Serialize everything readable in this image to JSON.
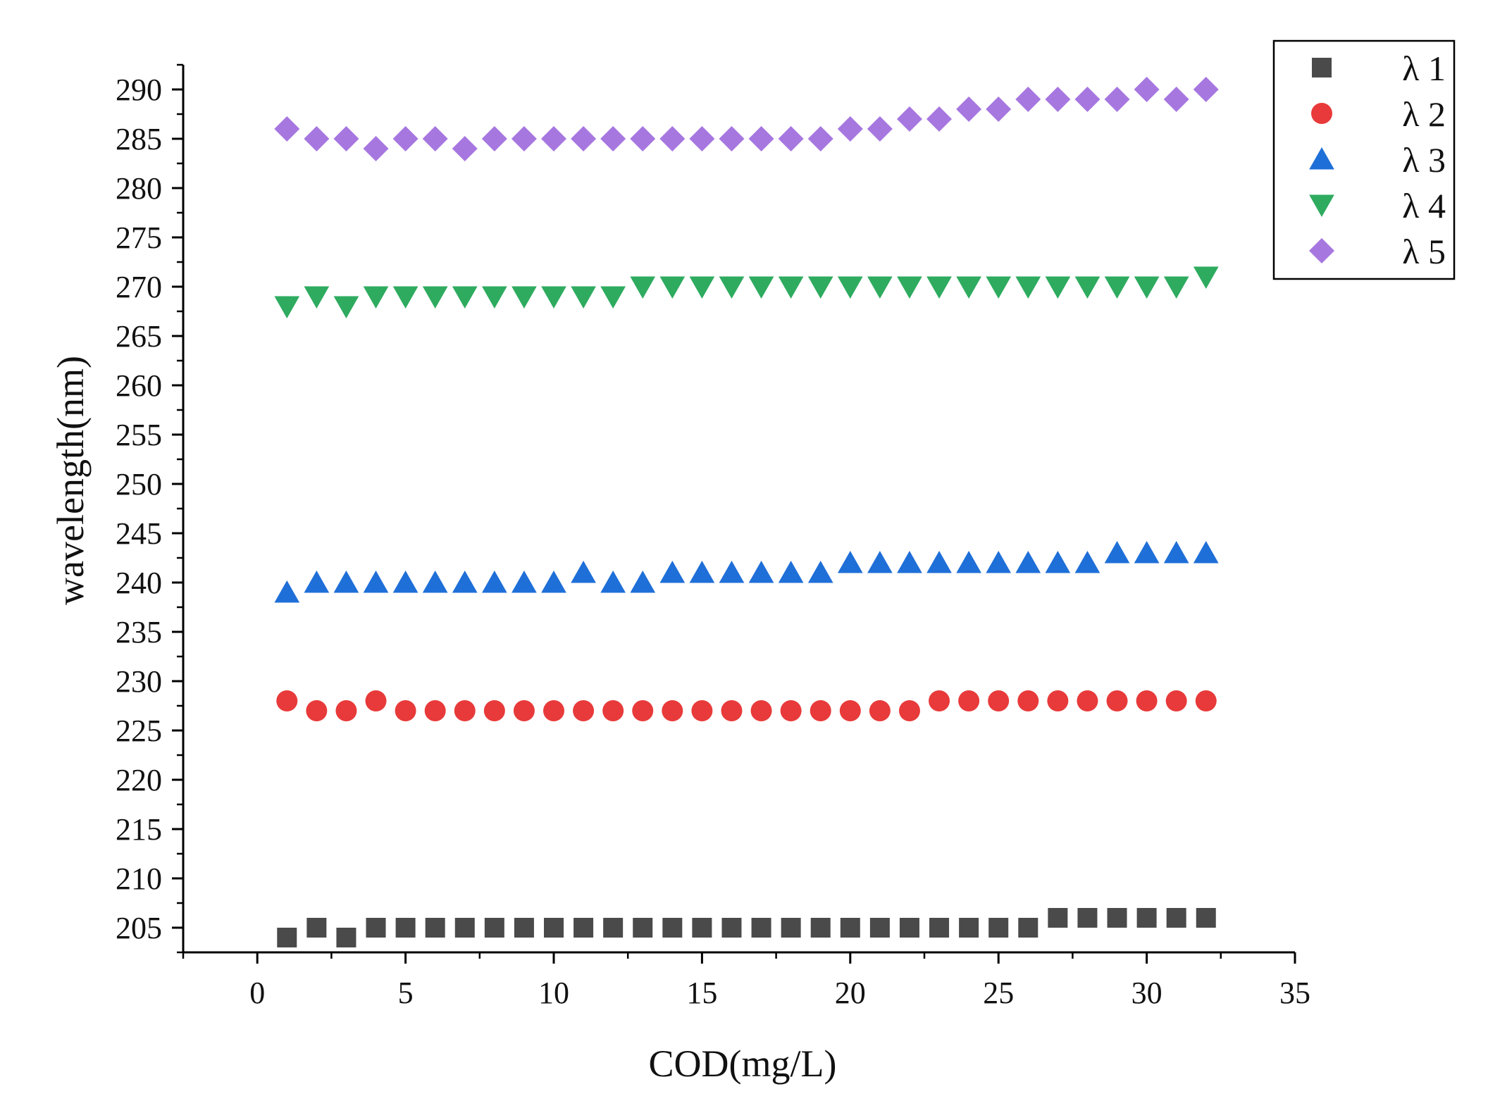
{
  "chart_data": {
    "type": "scatter",
    "title": "",
    "xlabel": "COD(mg/L)",
    "ylabel": "wavelength(nm)",
    "xlim": [
      -2.5,
      35
    ],
    "ylim": [
      202.5,
      292.5
    ],
    "xticks": [
      0,
      5,
      10,
      15,
      20,
      25,
      30,
      35
    ],
    "yticks": [
      205,
      210,
      215,
      220,
      225,
      230,
      235,
      240,
      245,
      250,
      255,
      260,
      265,
      270,
      275,
      280,
      285,
      290
    ],
    "legend_position": "top-right",
    "x": [
      1,
      2,
      3,
      4,
      5,
      6,
      7,
      8,
      9,
      10,
      11,
      12,
      13,
      14,
      15,
      16,
      17,
      18,
      19,
      20,
      21,
      22,
      23,
      24,
      25,
      26,
      27,
      28,
      29,
      30,
      31,
      32
    ],
    "series": [
      {
        "name": "λ 1",
        "marker": "square",
        "color": "#4a4a4a",
        "values": [
          204,
          205,
          204,
          205,
          205,
          205,
          205,
          205,
          205,
          205,
          205,
          205,
          205,
          205,
          205,
          205,
          205,
          205,
          205,
          205,
          205,
          205,
          205,
          205,
          205,
          205,
          206,
          206,
          206,
          206,
          206,
          206
        ]
      },
      {
        "name": "λ 2",
        "marker": "circle",
        "color": "#e83a3a",
        "values": [
          228,
          227,
          227,
          228,
          227,
          227,
          227,
          227,
          227,
          227,
          227,
          227,
          227,
          227,
          227,
          227,
          227,
          227,
          227,
          227,
          227,
          227,
          228,
          228,
          228,
          228,
          228,
          228,
          228,
          228,
          228,
          228
        ]
      },
      {
        "name": "λ 3",
        "marker": "triangle-up",
        "color": "#1f6fd8",
        "values": [
          239,
          240,
          240,
          240,
          240,
          240,
          240,
          240,
          240,
          240,
          241,
          240,
          240,
          241,
          241,
          241,
          241,
          241,
          241,
          242,
          242,
          242,
          242,
          242,
          242,
          242,
          242,
          242,
          243,
          243,
          243,
          243
        ]
      },
      {
        "name": "λ 4",
        "marker": "triangle-down",
        "color": "#2eab5f",
        "values": [
          268,
          269,
          268,
          269,
          269,
          269,
          269,
          269,
          269,
          269,
          269,
          269,
          270,
          270,
          270,
          270,
          270,
          270,
          270,
          270,
          270,
          270,
          270,
          270,
          270,
          270,
          270,
          270,
          270,
          270,
          270,
          271
        ]
      },
      {
        "name": "λ 5",
        "marker": "diamond",
        "color": "#a777e0",
        "values": [
          286,
          285,
          285,
          284,
          285,
          285,
          284,
          285,
          285,
          285,
          285,
          285,
          285,
          285,
          285,
          285,
          285,
          285,
          285,
          286,
          286,
          287,
          287,
          288,
          288,
          289,
          289,
          289,
          289,
          290,
          289,
          290
        ]
      }
    ]
  }
}
